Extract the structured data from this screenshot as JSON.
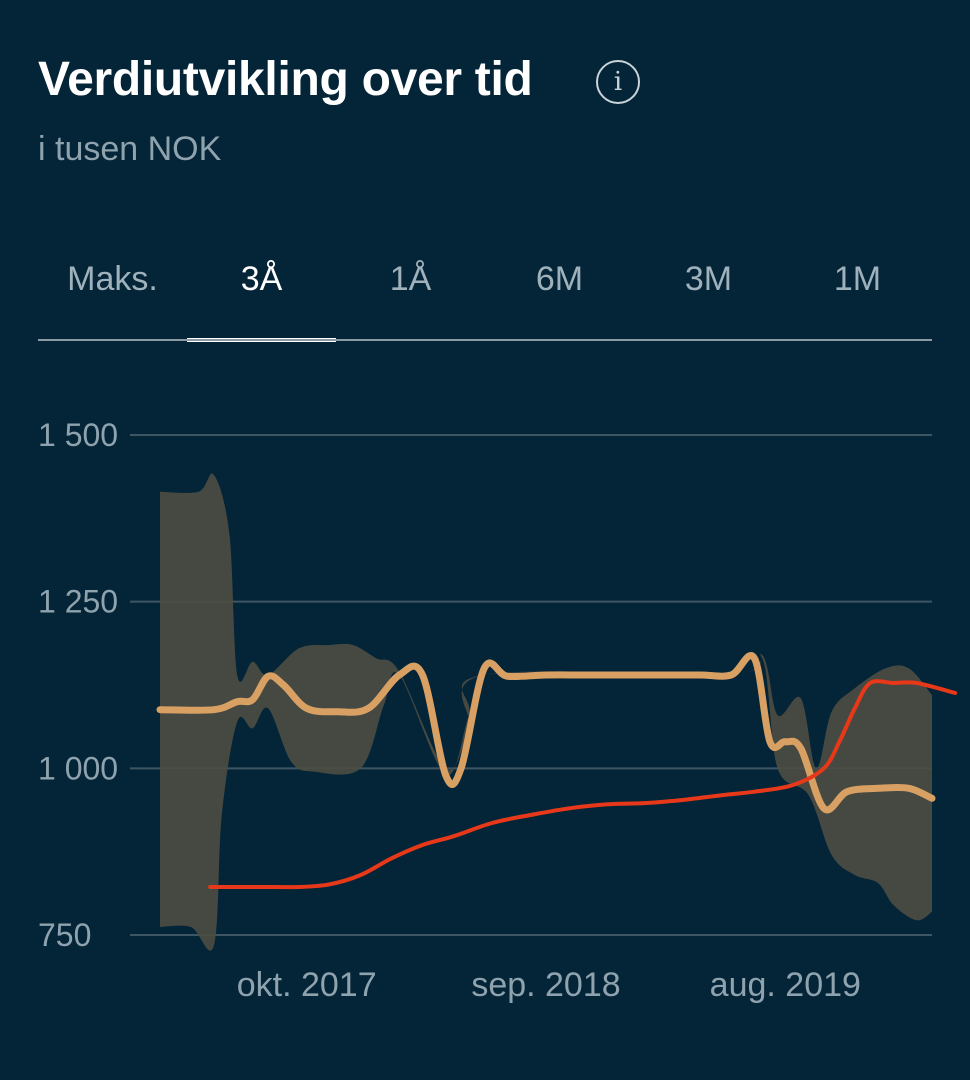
{
  "header": {
    "title": "Verdiutvikling over tid",
    "subtitle": "i tusen NOK",
    "info_icon": "info-icon"
  },
  "tabs": [
    {
      "label": "Maks.",
      "active": false
    },
    {
      "label": "3Å",
      "active": true
    },
    {
      "label": "1Å",
      "active": false
    },
    {
      "label": "6M",
      "active": false
    },
    {
      "label": "3M",
      "active": false
    },
    {
      "label": "1M",
      "active": false
    }
  ],
  "chart_data": {
    "type": "line",
    "y_ticks": [
      "1 500",
      "1 250",
      "1 000",
      "750"
    ],
    "y_tick_values": [
      1500,
      1250,
      1000,
      750
    ],
    "ylim": [
      750,
      1500
    ],
    "x_tick_labels": [
      "okt. 2017",
      "sep. 2018",
      "aug. 2019"
    ],
    "x_tick_positions": [
      0.19,
      0.5,
      0.81
    ],
    "grid": true,
    "colors": {
      "value_line": "#d9a064",
      "band_fill": "#4b4d42",
      "invested_line": "#e8381a",
      "grid": "#3e5663"
    },
    "value_series": [
      [
        0.0,
        1088
      ],
      [
        0.07,
        1088
      ],
      [
        0.1,
        1100
      ],
      [
        0.12,
        1103
      ],
      [
        0.14,
        1138
      ],
      [
        0.16,
        1125
      ],
      [
        0.19,
        1090
      ],
      [
        0.23,
        1085
      ],
      [
        0.27,
        1090
      ],
      [
        0.31,
        1140
      ],
      [
        0.34,
        1140
      ],
      [
        0.37,
        990
      ],
      [
        0.39,
        1000
      ],
      [
        0.42,
        1150
      ],
      [
        0.45,
        1138
      ],
      [
        0.5,
        1140
      ],
      [
        0.55,
        1140
      ],
      [
        0.6,
        1140
      ],
      [
        0.65,
        1140
      ],
      [
        0.7,
        1140
      ],
      [
        0.74,
        1140
      ],
      [
        0.77,
        1165
      ],
      [
        0.79,
        1040
      ],
      [
        0.81,
        1040
      ],
      [
        0.83,
        1030
      ],
      [
        0.86,
        940
      ],
      [
        0.89,
        965
      ],
      [
        0.93,
        970
      ],
      [
        0.97,
        970
      ],
      [
        1.0,
        955
      ]
    ],
    "band_upper": [
      [
        0.0,
        1415
      ],
      [
        0.05,
        1415
      ],
      [
        0.07,
        1440
      ],
      [
        0.09,
        1350
      ],
      [
        0.1,
        1140
      ],
      [
        0.12,
        1160
      ],
      [
        0.14,
        1140
      ],
      [
        0.18,
        1180
      ],
      [
        0.22,
        1185
      ],
      [
        0.25,
        1185
      ],
      [
        0.28,
        1165
      ],
      [
        0.31,
        1145
      ],
      [
        0.37,
        1000
      ],
      [
        0.4,
        1060
      ],
      [
        0.42,
        1140
      ],
      [
        0.74,
        1140
      ],
      [
        0.78,
        1170
      ],
      [
        0.8,
        1080
      ],
      [
        0.83,
        1105
      ],
      [
        0.85,
        1000
      ],
      [
        0.87,
        1085
      ],
      [
        0.9,
        1120
      ],
      [
        0.94,
        1150
      ],
      [
        0.97,
        1150
      ],
      [
        1.0,
        1110
      ]
    ],
    "band_lower": [
      [
        0.0,
        762
      ],
      [
        0.04,
        762
      ],
      [
        0.07,
        735
      ],
      [
        0.08,
        930
      ],
      [
        0.1,
        1070
      ],
      [
        0.12,
        1060
      ],
      [
        0.14,
        1090
      ],
      [
        0.17,
        1010
      ],
      [
        0.2,
        995
      ],
      [
        0.26,
        1000
      ],
      [
        0.29,
        1095
      ],
      [
        0.31,
        1140
      ],
      [
        0.37,
        990
      ],
      [
        0.4,
        1080
      ],
      [
        0.42,
        1140
      ],
      [
        0.74,
        1140
      ],
      [
        0.78,
        1165
      ],
      [
        0.8,
        1000
      ],
      [
        0.84,
        960
      ],
      [
        0.87,
        870
      ],
      [
        0.9,
        840
      ],
      [
        0.93,
        828
      ],
      [
        0.95,
        795
      ],
      [
        0.98,
        772
      ],
      [
        1.0,
        785
      ]
    ],
    "invested_series": [
      [
        0.065,
        822
      ],
      [
        0.1,
        822
      ],
      [
        0.15,
        822
      ],
      [
        0.18,
        822
      ],
      [
        0.22,
        826
      ],
      [
        0.26,
        840
      ],
      [
        0.3,
        865
      ],
      [
        0.34,
        885
      ],
      [
        0.38,
        898
      ],
      [
        0.43,
        918
      ],
      [
        0.48,
        930
      ],
      [
        0.53,
        940
      ],
      [
        0.58,
        946
      ],
      [
        0.63,
        948
      ],
      [
        0.68,
        953
      ],
      [
        0.73,
        960
      ],
      [
        0.77,
        965
      ],
      [
        0.82,
        975
      ],
      [
        0.86,
        1000
      ],
      [
        0.88,
        1040
      ],
      [
        0.9,
        1090
      ],
      [
        0.92,
        1128
      ],
      [
        0.95,
        1128
      ],
      [
        0.98,
        1128
      ],
      [
        1.03,
        1113
      ]
    ]
  }
}
